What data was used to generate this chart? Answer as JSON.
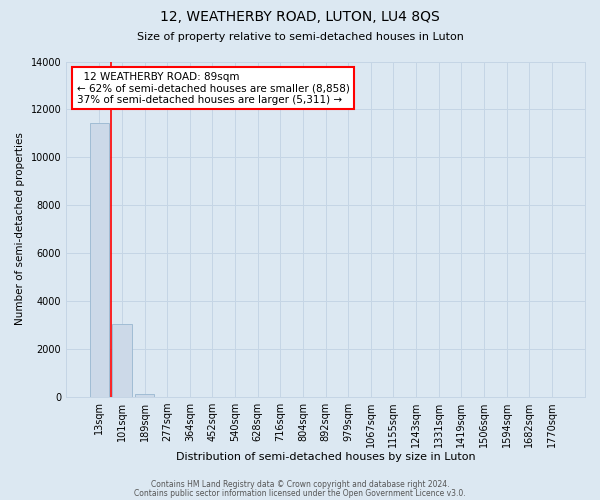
{
  "title": "12, WEATHERBY ROAD, LUTON, LU4 8QS",
  "subtitle": "Size of property relative to semi-detached houses in Luton",
  "bar_labels": [
    "13sqm",
    "101sqm",
    "189sqm",
    "277sqm",
    "364sqm",
    "452sqm",
    "540sqm",
    "628sqm",
    "716sqm",
    "804sqm",
    "892sqm",
    "979sqm",
    "1067sqm",
    "1155sqm",
    "1243sqm",
    "1331sqm",
    "1419sqm",
    "1506sqm",
    "1594sqm",
    "1682sqm",
    "1770sqm"
  ],
  "bar_values": [
    11430,
    3020,
    120,
    0,
    0,
    0,
    0,
    0,
    0,
    0,
    0,
    0,
    0,
    0,
    0,
    0,
    0,
    0,
    0,
    0,
    0
  ],
  "bar_color": "#ccd9e8",
  "bar_edgecolor": "#a0bcd4",
  "property_line_x": 0.5,
  "property_line_color": "red",
  "xlabel": "Distribution of semi-detached houses by size in Luton",
  "ylabel": "Number of semi-detached properties",
  "ylim": [
    0,
    14000
  ],
  "yticks": [
    0,
    2000,
    4000,
    6000,
    8000,
    10000,
    12000,
    14000
  ],
  "annotation_title": "12 WEATHERBY ROAD: 89sqm",
  "annotation_line1": "← 62% of semi-detached houses are smaller (8,858)",
  "annotation_line2": "37% of semi-detached houses are larger (5,311) →",
  "annotation_box_color": "white",
  "annotation_box_edgecolor": "red",
  "grid_color": "#c5d5e5",
  "bg_color": "#dce8f2",
  "footer1": "Contains HM Land Registry data © Crown copyright and database right 2024.",
  "footer2": "Contains public sector information licensed under the Open Government Licence v3.0."
}
